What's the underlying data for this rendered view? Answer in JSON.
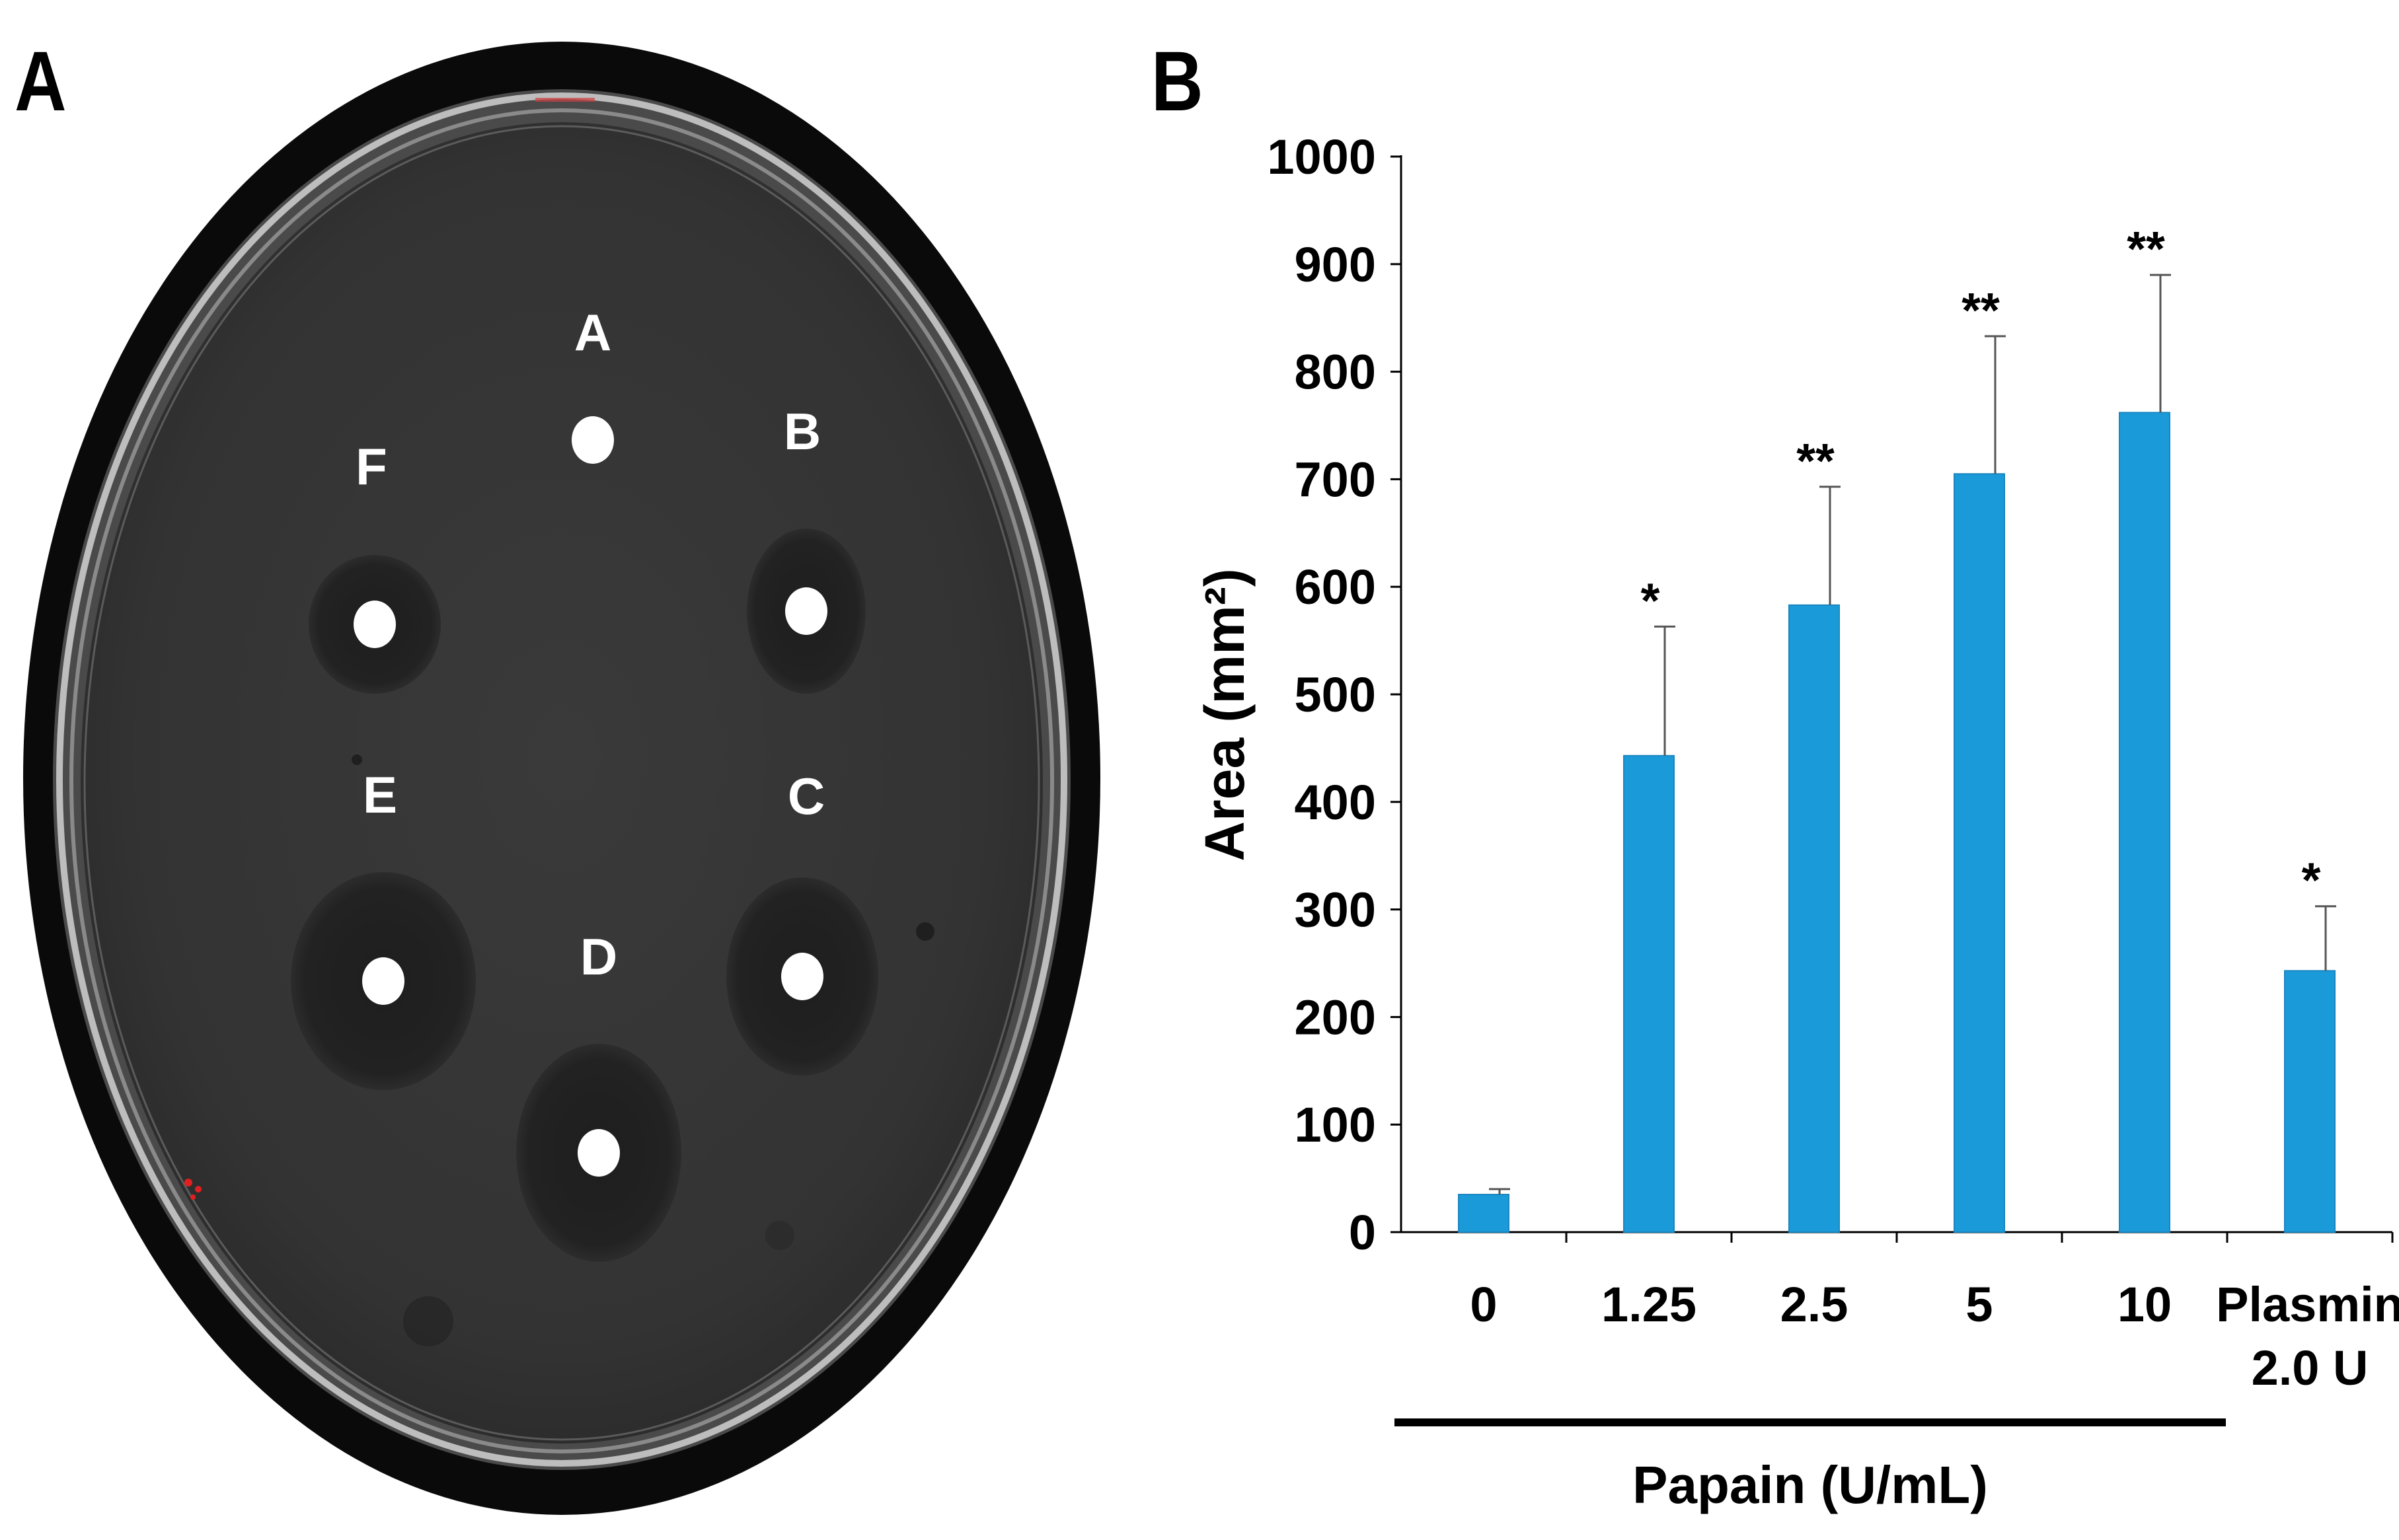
{
  "panels": {
    "a_label": "A",
    "b_label": "B"
  },
  "dish": {
    "wells": [
      {
        "label": "A",
        "clear_zone": false
      },
      {
        "label": "B",
        "clear_zone": true
      },
      {
        "label": "C",
        "clear_zone": true
      },
      {
        "label": "D",
        "clear_zone": true
      },
      {
        "label": "E",
        "clear_zone": true
      },
      {
        "label": "F",
        "clear_zone": true
      }
    ]
  },
  "chart_data": {
    "type": "bar",
    "title": "",
    "ylabel": "Area (mm²)",
    "xlabel": "Papain (U/mL)",
    "ylim": [
      0,
      1000
    ],
    "yticks": [
      0,
      100,
      200,
      300,
      400,
      500,
      600,
      700,
      800,
      900,
      1000
    ],
    "categories": [
      "0",
      "1.25",
      "2.5",
      "5",
      "10",
      "Plasmin 2.0 U"
    ],
    "category_lines": [
      [
        "0"
      ],
      [
        "1.25"
      ],
      [
        "2.5"
      ],
      [
        "5"
      ],
      [
        "10"
      ],
      [
        "Plasmin",
        "2.0 U"
      ]
    ],
    "values": [
      35,
      443,
      583,
      705,
      762,
      243
    ],
    "error_upper": [
      5,
      120,
      110,
      128,
      128,
      60
    ],
    "significance": [
      "",
      "*",
      "**",
      "**",
      "**",
      "*"
    ],
    "bracket_groups": [
      "0",
      "1.25",
      "2.5",
      "5",
      "10"
    ],
    "bar_color": "#1a9ad9",
    "grid": false,
    "legend": "none"
  }
}
